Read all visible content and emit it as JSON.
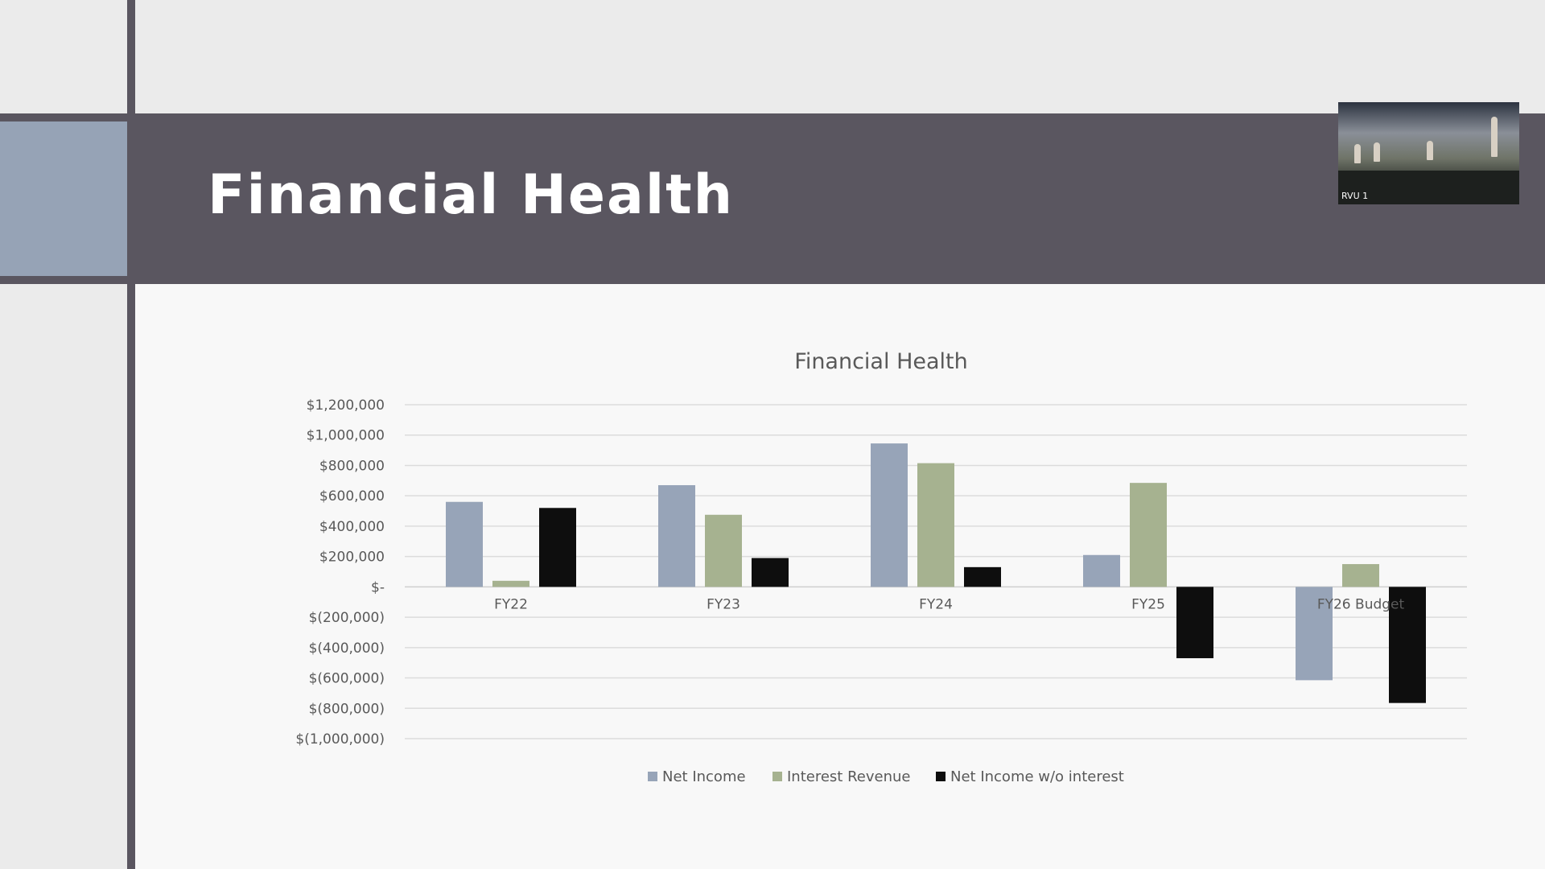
{
  "slide": {
    "title": "Financial Health"
  },
  "video": {
    "label": "RVU 1"
  },
  "colors": {
    "band": "#5a5660",
    "accent": "#96a3b6",
    "net_income": "#97a4b8",
    "interest_revenue": "#a6b290",
    "net_income_wo_interest": "#0e0e0e"
  },
  "chart_data": {
    "type": "bar",
    "title": "Financial Health",
    "categories": [
      "FY22",
      "FY23",
      "FY24",
      "FY25",
      "FY26 Budget"
    ],
    "series": [
      {
        "name": "Net Income",
        "color": "#97a4b8",
        "values": [
          560000,
          670000,
          945000,
          210000,
          -615000
        ]
      },
      {
        "name": "Interest Revenue",
        "color": "#a6b290",
        "values": [
          40000,
          475000,
          815000,
          685000,
          150000
        ]
      },
      {
        "name": "Net Income w/o interest",
        "color": "#0e0e0e",
        "values": [
          520000,
          190000,
          130000,
          -470000,
          -765000
        ]
      }
    ],
    "ylim": [
      -1000000,
      1200000
    ],
    "yticks": [
      1200000,
      1000000,
      800000,
      600000,
      400000,
      200000,
      0,
      -200000,
      -400000,
      -600000,
      -800000,
      -1000000
    ],
    "ytick_labels": [
      "$1,200,000",
      "$1,000,000",
      "$800,000",
      "$600,000",
      "$400,000",
      "$200,000",
      "$-",
      "$(200,000)",
      "$(400,000)",
      "$(600,000)",
      "$(800,000)",
      "$(1,000,000)"
    ],
    "grid": true,
    "legend": "bottom"
  }
}
